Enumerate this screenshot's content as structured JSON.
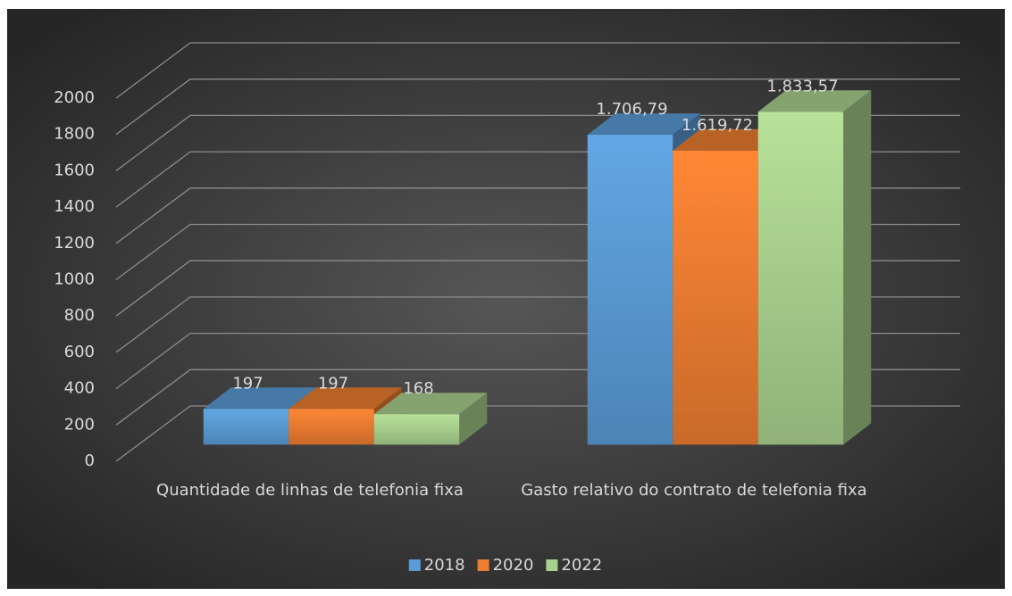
{
  "chart_data": {
    "type": "bar3d",
    "categories": [
      "Quantidade de linhas de telefonia fixa",
      "Gasto relativo do contrato de telefonia fixa"
    ],
    "series": [
      {
        "name": "2018",
        "color": "#5b9bd5",
        "values": [
          197,
          1706.79
        ],
        "value_labels": [
          "197",
          "1.706,79"
        ]
      },
      {
        "name": "2020",
        "color": "#ed7d31",
        "values": [
          197,
          1619.72
        ],
        "value_labels": [
          "197",
          "1.619,72"
        ]
      },
      {
        "name": "2022",
        "color": "#a9d18e",
        "values": [
          168,
          1833.57
        ],
        "value_labels": [
          "168",
          "1.833,57"
        ]
      }
    ],
    "ylim": [
      0,
      2000
    ],
    "yticks": [
      0,
      200,
      400,
      600,
      800,
      1000,
      1200,
      1400,
      1600,
      1800,
      2000
    ],
    "grid": true,
    "legend": "bottom"
  }
}
